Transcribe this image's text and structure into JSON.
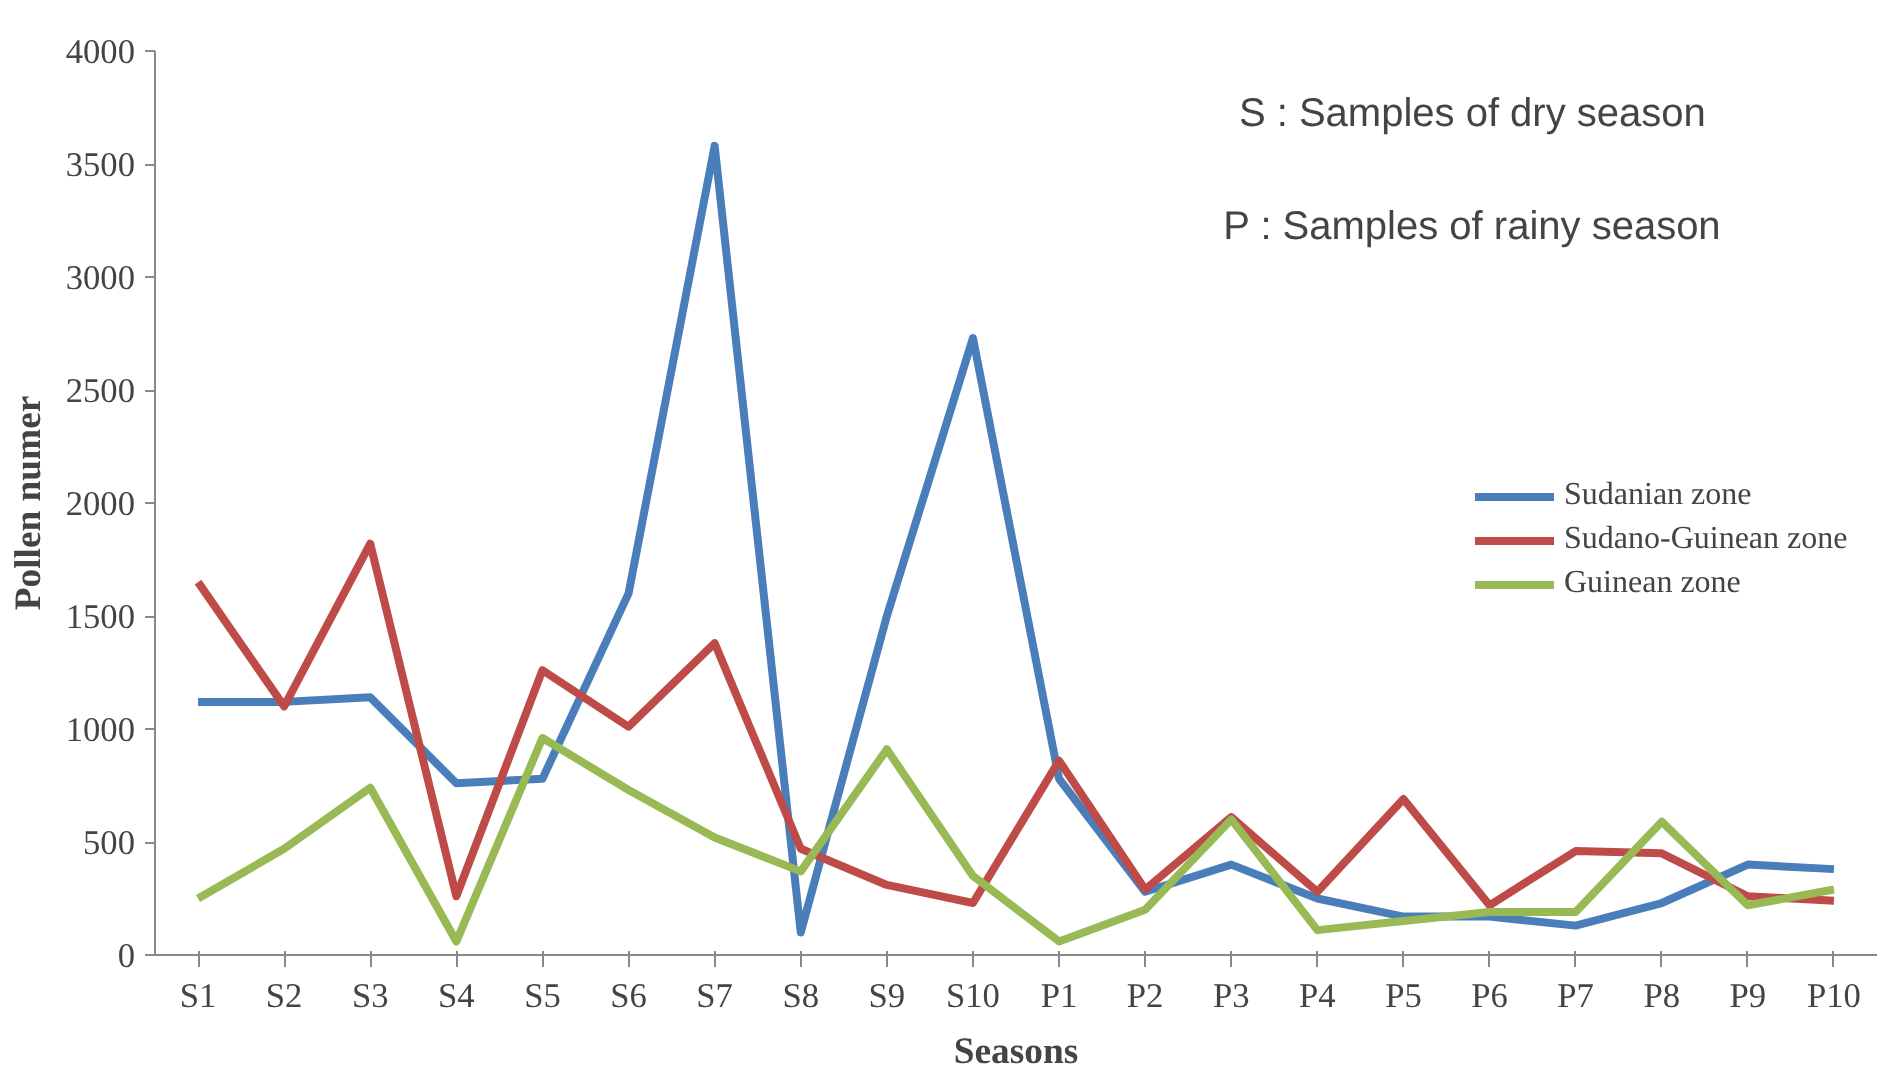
{
  "chart_data": {
    "type": "line",
    "xlabel": "Seasons",
    "ylabel": "Pollen numer",
    "categories": [
      "S1",
      "S2",
      "S3",
      "S4",
      "S5",
      "S6",
      "S7",
      "S8",
      "S9",
      "S10",
      "P1",
      "P2",
      "P3",
      "P4",
      "P5",
      "P6",
      "P7",
      "P8",
      "P9",
      "P10"
    ],
    "series": [
      {
        "name": "Sudanian zone",
        "color": "#4a7ebb",
        "values": [
          1120,
          1120,
          1140,
          760,
          780,
          1600,
          3580,
          100,
          1500,
          2730,
          780,
          280,
          400,
          250,
          170,
          170,
          130,
          230,
          400,
          380
        ]
      },
      {
        "name": "Sudano-Guinean zone",
        "color": "#be4b48",
        "values": [
          1650,
          1100,
          1820,
          260,
          1260,
          1010,
          1380,
          470,
          310,
          230,
          860,
          290,
          610,
          280,
          690,
          220,
          460,
          450,
          260,
          240
        ]
      },
      {
        "name": "Guinean zone",
        "color": "#98b954",
        "values": [
          250,
          470,
          740,
          60,
          960,
          730,
          520,
          370,
          910,
          350,
          60,
          200,
          600,
          110,
          150,
          190,
          190,
          590,
          220,
          290
        ]
      }
    ],
    "ylim": [
      0,
      4000
    ],
    "yticks": [
      0,
      500,
      1000,
      1500,
      2000,
      2500,
      3000,
      3500,
      4000
    ],
    "annotations": [
      "S : Samples of dry season",
      "P : Samples of rainy season"
    ],
    "legend": "right",
    "grid": false,
    "marker": "none",
    "line_style": "solid"
  }
}
